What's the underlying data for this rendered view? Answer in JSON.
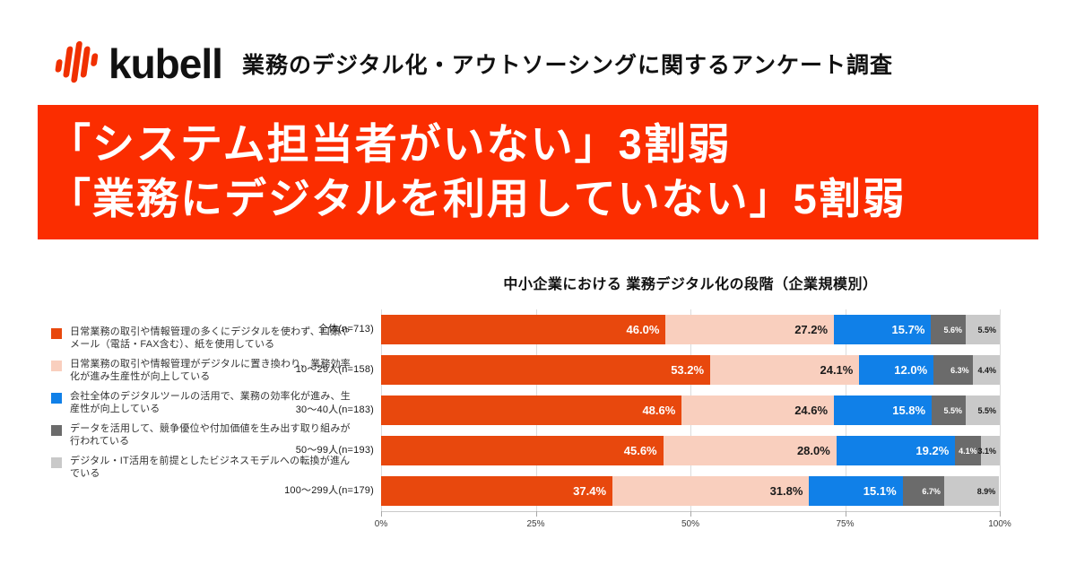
{
  "header": {
    "logo": {
      "brand": "kubell",
      "icon": "soundwave-icon"
    },
    "subtitle": "業務のデジタル化・アウトソーシングに関するアンケート調査"
  },
  "banner": {
    "line1": "「システム担当者がいない」3割弱",
    "line2": "「業務にデジタルを利用していない」5割弱"
  },
  "colors": {
    "banner_bg": "#FB2D00",
    "logo_orange": "#F03000",
    "grid_line": "#DCDCDC",
    "axis_text": "#3C3C3C"
  },
  "chart_data": {
    "type": "bar",
    "orientation": "horizontal",
    "stacked": true,
    "title": "中小企業における 業務デジタル化の段階（企業規模別）",
    "categories": [
      "全体(n=713)",
      "10～29人(n=158)",
      "30～40人(n=183)",
      "50～99人(n=193)",
      "100～299人(n=179)"
    ],
    "series": [
      {
        "name": "日常業務の取引や情報管理の多くにデジタルを使わず、口頭やメール（電話・FAX含む）、紙を使用している",
        "color": "#E8480D",
        "label_color": "#FFFFFF",
        "values": [
          46.0,
          53.2,
          48.6,
          45.6,
          37.4
        ]
      },
      {
        "name": "日常業務の取引や情報管理がデジタルに置き換わり、業務効率化が進み生産性が向上している",
        "color": "#F9CFBE",
        "label_color": "#1A1A1A",
        "values": [
          27.2,
          24.1,
          24.6,
          28.0,
          31.8
        ]
      },
      {
        "name": "会社全体のデジタルツールの活用で、業務の効率化が進み、生産性が向上している",
        "color": "#1080E8",
        "label_color": "#FFFFFF",
        "values": [
          15.7,
          12.0,
          15.8,
          19.2,
          15.1
        ]
      },
      {
        "name": "データを活用して、競争優位や付加価値を生み出す取り組みが行われている",
        "color": "#6B6B6B",
        "label_color": "#FFFFFF",
        "values": [
          5.6,
          6.3,
          5.5,
          4.1,
          6.7
        ]
      },
      {
        "name": "デジタル・IT活用を前提としたビジネスモデルへの転換が進んでいる",
        "color": "#C9C9C9",
        "label_color": "#1A1A1A",
        "values": [
          5.5,
          4.4,
          5.5,
          3.1,
          8.9
        ]
      }
    ],
    "x_ticks": [
      "0%",
      "25%",
      "50%",
      "75%",
      "100%"
    ],
    "xlim": [
      0,
      100
    ],
    "grid": true,
    "legend_position": "left",
    "value_suffix": "%"
  }
}
